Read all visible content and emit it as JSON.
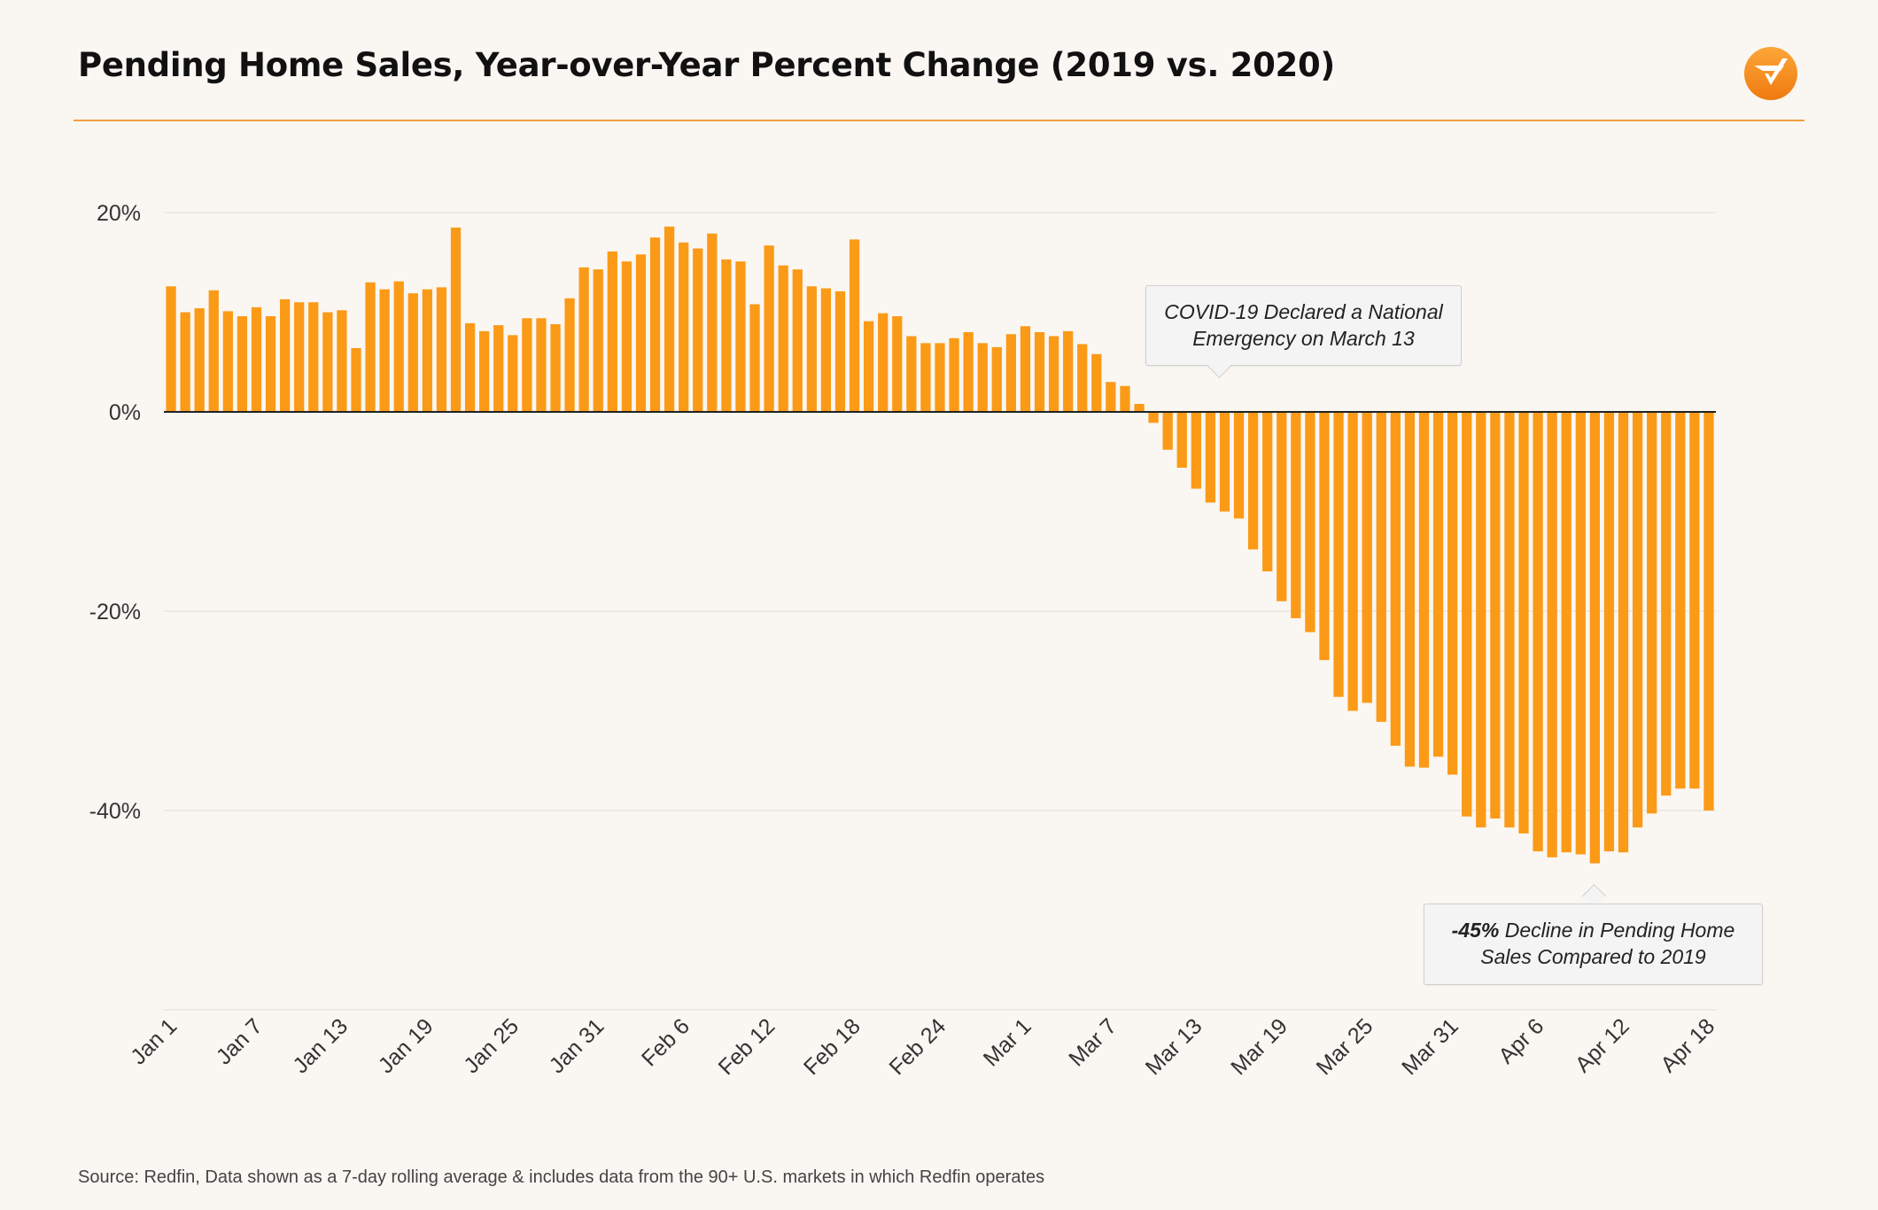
{
  "title": "Pending Home Sales, Year-over-Year Percent Change (2019 vs. 2020)",
  "source": "Source: Redfin, Data shown as a 7-day rolling average & includes data from the 90+ U.S. markets in which Redfin operates",
  "logo_icon": "redfin-check-logo-icon",
  "colors": {
    "bar": "#fb9a16",
    "accent": "#f0a040",
    "grid": "#dddddd",
    "zero_line": "#222222",
    "background": "#faf6f2"
  },
  "annotations": {
    "covid_line1": "COVID-19 Declared a National",
    "covid_line2": "Emergency on March 13",
    "decline_bold": "-45%",
    "decline_line1_rest": " Decline in Pending Home",
    "decline_line2": "Sales Compared to 2019"
  },
  "chart_data": {
    "type": "bar",
    "title": "Pending Home Sales, Year-over-Year Percent Change (2019 vs. 2020)",
    "xlabel": "",
    "ylabel": "",
    "ylim": [
      -60,
      20
    ],
    "yticks": [
      20,
      0,
      -20,
      -40
    ],
    "ytick_labels": [
      "20%",
      "0%",
      "-20%",
      "-40%"
    ],
    "xtick_labels": [
      "Jan 1",
      "Jan 7",
      "Jan 13",
      "Jan 19",
      "Jan 25",
      "Jan 31",
      "Feb 6",
      "Feb 12",
      "Feb 18",
      "Feb 24",
      "Mar 1",
      "Mar 7",
      "Mar 13",
      "Mar 19",
      "Mar 25",
      "Mar 31",
      "Apr 6",
      "Apr 12",
      "Apr 18"
    ],
    "xtick_every": 6,
    "grid": true,
    "start_date": "Jan 1",
    "end_date": "Apr 18",
    "values": [
      12.6,
      10.0,
      10.4,
      12.2,
      10.1,
      9.6,
      10.5,
      9.6,
      11.3,
      11.0,
      11.0,
      10.0,
      10.2,
      6.4,
      13.0,
      12.3,
      13.1,
      11.9,
      12.3,
      12.5,
      18.5,
      8.9,
      8.1,
      8.7,
      7.7,
      9.4,
      9.4,
      8.8,
      11.4,
      14.5,
      14.3,
      16.1,
      15.1,
      15.8,
      17.5,
      18.6,
      17.0,
      16.4,
      17.9,
      15.3,
      15.1,
      10.8,
      16.7,
      14.7,
      14.3,
      12.6,
      12.4,
      12.1,
      17.3,
      9.1,
      9.9,
      9.6,
      7.6,
      6.9,
      6.9,
      7.4,
      8.0,
      6.9,
      6.5,
      7.8,
      8.6,
      8.0,
      7.6,
      8.1,
      6.8,
      5.8,
      3.0,
      2.6,
      0.8,
      -1.1,
      -3.8,
      -5.6,
      -7.7,
      -9.1,
      -10.0,
      -10.7,
      -13.8,
      -16.0,
      -19.0,
      -20.7,
      -22.1,
      -24.9,
      -28.6,
      -30.0,
      -29.2,
      -31.1,
      -33.5,
      -35.6,
      -35.7,
      -34.6,
      -36.4,
      -40.6,
      -41.7,
      -40.8,
      -41.7,
      -42.3,
      -44.1,
      -44.7,
      -44.2,
      -44.4,
      -45.3,
      -44.1,
      -44.2,
      -41.7,
      -40.3,
      -38.5,
      -37.8,
      -37.8,
      -40.0
    ]
  }
}
